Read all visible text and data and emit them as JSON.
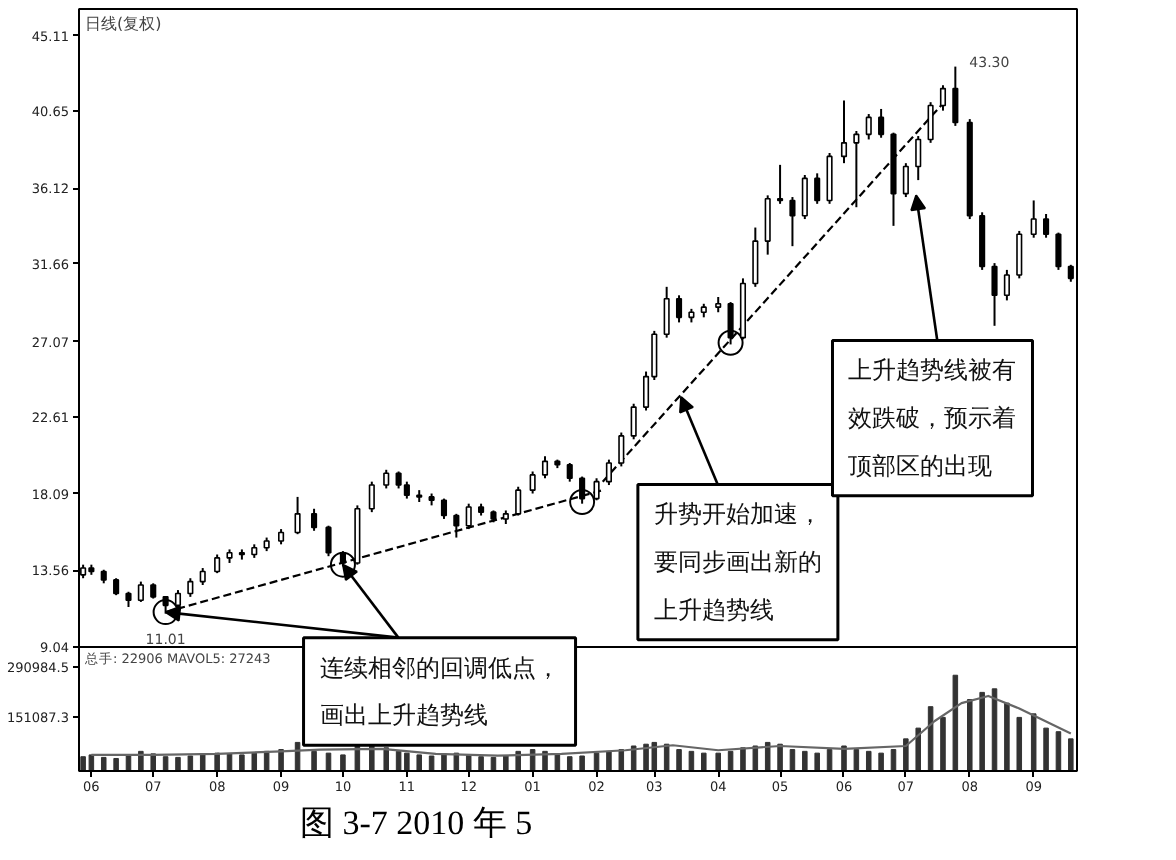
{
  "chart_data": [
    {
      "type": "candlestick",
      "title": "日线(复权)",
      "color": "#000000",
      "xlim": [
        "2010-05-26",
        "2011-09-22"
      ],
      "ylim": [
        9.04,
        46.7
      ],
      "yticks": [
        9.04,
        13.56,
        18.09,
        22.61,
        27.07,
        31.66,
        36.12,
        40.65,
        45.11
      ],
      "tick_labels": "y",
      "x": [
        "2010-05-28",
        "2010-06-01",
        "2010-06-07",
        "2010-06-13",
        "2010-06-19",
        "2010-06-25",
        "2010-07-01",
        "2010-07-07",
        "2010-07-13",
        "2010-07-19",
        "2010-07-25",
        "2010-08-01",
        "2010-08-07",
        "2010-08-13",
        "2010-08-19",
        "2010-08-25",
        "2010-09-01",
        "2010-09-09",
        "2010-09-17",
        "2010-09-24",
        "2010-10-01",
        "2010-10-08",
        "2010-10-15",
        "2010-10-22",
        "2010-10-28",
        "2010-11-01",
        "2010-11-07",
        "2010-11-13",
        "2010-11-19",
        "2010-11-25",
        "2010-12-01",
        "2010-12-07",
        "2010-12-13",
        "2010-12-19",
        "2010-12-25",
        "2011-01-01",
        "2011-01-07",
        "2011-01-13",
        "2011-01-19",
        "2011-01-25",
        "2011-02-01",
        "2011-02-07",
        "2011-02-13",
        "2011-02-19",
        "2011-02-25",
        "2011-03-01",
        "2011-03-07",
        "2011-03-13",
        "2011-03-19",
        "2011-03-25",
        "2011-04-01",
        "2011-04-07",
        "2011-04-13",
        "2011-04-19",
        "2011-04-25",
        "2011-05-01",
        "2011-05-07",
        "2011-05-13",
        "2011-05-19",
        "2011-05-25",
        "2011-06-01",
        "2011-06-07",
        "2011-06-13",
        "2011-06-19",
        "2011-06-25",
        "2011-07-01",
        "2011-07-07",
        "2011-07-13",
        "2011-07-19",
        "2011-07-25",
        "2011-08-01",
        "2011-08-07",
        "2011-08-13",
        "2011-08-19",
        "2011-08-25",
        "2011-09-01",
        "2011-09-07",
        "2011-09-13",
        "2011-09-19"
      ],
      "ohlc": [
        [
          13.3,
          13.9,
          13.1,
          13.7
        ],
        [
          13.7,
          13.9,
          13.3,
          13.5
        ],
        [
          13.5,
          13.6,
          12.8,
          13.0
        ],
        [
          13.0,
          13.1,
          12.1,
          12.2
        ],
        [
          12.2,
          12.3,
          11.4,
          11.8
        ],
        [
          11.8,
          12.9,
          11.7,
          12.7
        ],
        [
          12.7,
          12.8,
          11.9,
          12.0
        ],
        [
          12.0,
          12.0,
          11.01,
          11.5
        ],
        [
          11.5,
          12.4,
          11.4,
          12.2
        ],
        [
          12.2,
          13.1,
          12.0,
          12.9
        ],
        [
          12.9,
          13.7,
          12.7,
          13.5
        ],
        [
          13.5,
          14.5,
          13.4,
          14.3
        ],
        [
          14.3,
          14.8,
          14.0,
          14.6
        ],
        [
          14.6,
          14.8,
          14.2,
          14.5
        ],
        [
          14.5,
          15.1,
          14.3,
          14.9
        ],
        [
          14.9,
          15.5,
          14.7,
          15.3
        ],
        [
          15.3,
          16.0,
          15.1,
          15.8
        ],
        [
          15.8,
          17.9,
          15.7,
          16.9
        ],
        [
          16.9,
          17.2,
          15.9,
          16.1
        ],
        [
          16.1,
          16.2,
          14.4,
          14.6
        ],
        [
          14.6,
          14.7,
          13.8,
          14.0
        ],
        [
          14.0,
          17.4,
          13.9,
          17.2
        ],
        [
          17.2,
          18.8,
          17.0,
          18.6
        ],
        [
          18.6,
          19.5,
          18.4,
          19.3
        ],
        [
          19.3,
          19.4,
          18.4,
          18.6
        ],
        [
          18.6,
          18.8,
          17.8,
          18.0
        ],
        [
          18.0,
          18.3,
          17.6,
          17.9
        ],
        [
          17.9,
          18.1,
          17.4,
          17.7
        ],
        [
          17.7,
          17.8,
          16.6,
          16.8
        ],
        [
          16.8,
          16.9,
          15.5,
          16.2
        ],
        [
          16.2,
          17.5,
          16.0,
          17.3
        ],
        [
          17.3,
          17.5,
          16.8,
          17.0
        ],
        [
          17.0,
          17.1,
          16.4,
          16.6
        ],
        [
          16.6,
          17.1,
          16.3,
          16.9
        ],
        [
          16.9,
          18.5,
          16.8,
          18.3
        ],
        [
          18.3,
          19.4,
          18.1,
          19.2
        ],
        [
          19.2,
          20.3,
          19.0,
          20.0
        ],
        [
          20.0,
          20.1,
          19.6,
          19.8
        ],
        [
          19.8,
          19.9,
          18.8,
          19.0
        ],
        [
          19.0,
          19.1,
          17.5,
          17.8
        ],
        [
          17.8,
          19.0,
          17.7,
          18.8
        ],
        [
          18.8,
          20.1,
          18.6,
          19.9
        ],
        [
          19.9,
          21.7,
          19.7,
          21.5
        ],
        [
          21.5,
          23.4,
          21.3,
          23.2
        ],
        [
          23.2,
          25.3,
          23.0,
          25.0
        ],
        [
          25.0,
          27.7,
          24.8,
          27.5
        ],
        [
          27.5,
          30.3,
          27.3,
          29.6
        ],
        [
          29.6,
          29.8,
          28.2,
          28.5
        ],
        [
          28.5,
          29.0,
          28.2,
          28.8
        ],
        [
          28.8,
          29.3,
          28.5,
          29.1
        ],
        [
          29.1,
          29.7,
          28.8,
          29.3
        ],
        [
          29.3,
          29.4,
          26.9,
          27.3
        ],
        [
          27.3,
          30.8,
          27.2,
          30.5
        ],
        [
          30.5,
          33.8,
          30.3,
          33.0
        ],
        [
          33.0,
          35.7,
          32.2,
          35.5
        ],
        [
          35.5,
          37.5,
          35.2,
          35.4
        ],
        [
          35.4,
          35.6,
          32.7,
          34.5
        ],
        [
          34.5,
          36.9,
          34.3,
          36.7
        ],
        [
          36.7,
          37.0,
          35.2,
          35.4
        ],
        [
          35.4,
          38.2,
          35.2,
          38.0
        ],
        [
          38.0,
          41.3,
          37.6,
          38.8
        ],
        [
          38.8,
          39.5,
          35.0,
          39.3
        ],
        [
          39.3,
          40.5,
          39.0,
          40.3
        ],
        [
          40.3,
          40.8,
          39.1,
          39.3
        ],
        [
          39.3,
          39.4,
          33.9,
          35.8
        ],
        [
          35.8,
          37.6,
          35.6,
          37.4
        ],
        [
          37.4,
          39.2,
          36.6,
          39.0
        ],
        [
          39.0,
          41.2,
          38.8,
          41.0
        ],
        [
          41.0,
          42.2,
          40.7,
          42.0
        ],
        [
          42.0,
          43.3,
          39.8,
          40.0
        ],
        [
          40.0,
          40.2,
          34.3,
          34.5
        ],
        [
          34.5,
          34.7,
          31.3,
          31.5
        ],
        [
          31.5,
          31.7,
          28.0,
          29.8
        ],
        [
          29.8,
          31.3,
          29.5,
          31.0
        ],
        [
          31.0,
          33.6,
          30.8,
          33.4
        ],
        [
          33.4,
          35.4,
          33.2,
          34.3
        ],
        [
          34.3,
          34.6,
          33.2,
          33.4
        ],
        [
          33.4,
          33.5,
          31.3,
          31.5
        ],
        [
          31.5,
          31.6,
          30.6,
          30.8
        ]
      ],
      "series": [
        {
          "type": "line",
          "x": [
            "2010-07-07",
            "2011-02-04"
          ],
          "values": [
            11.1,
            18.3
          ],
          "color": "#000000",
          "line_style": "dashed"
        },
        {
          "type": "line",
          "x": [
            "2011-02-04",
            "2011-07-21"
          ],
          "values": [
            18.8,
            41.4
          ],
          "color": "#000000",
          "line_style": "dashed"
        },
        {
          "type": "scatter",
          "x": [
            "2010-07-07",
            "2010-10-01",
            "2011-01-25",
            "2011-04-07"
          ],
          "values": [
            11.1,
            13.9,
            17.6,
            27.0
          ],
          "color": "#000000",
          "marker": "circle"
        }
      ],
      "annotations": [
        {
          "text": "11.01",
          "x": "2010-07-07",
          "y": 11.01
        },
        {
          "text": "43.30",
          "x": "2011-07-25",
          "y": 43.3
        },
        {
          "text": "连续相邻的回调低点，画出上升趋势线",
          "x": "2010-07-07",
          "y": 11.1
        },
        {
          "text": "升势开始加速，要同步画出新的上升趋势线",
          "x": "2011-03-14",
          "y": 23.8
        },
        {
          "text": "上升趋势线被有效跌破，预示着顶部区的出现",
          "x": "2011-07-06",
          "y": 35.7
        }
      ]
    },
    {
      "type": "bar",
      "title": "总手: 22906 MAVOL5: 27243",
      "xlim": [
        "2010-05-26",
        "2011-09-22"
      ],
      "ylim": [
        0,
        347000
      ],
      "yticks": [
        151087.3,
        290984.5
      ],
      "xticks": [
        {
          "value": "2010-06-01",
          "label": "06"
        },
        {
          "value": "2010-07-01",
          "label": "07"
        },
        {
          "value": "2010-08-01",
          "label": "08"
        },
        {
          "value": "2010-09-01",
          "label": "09"
        },
        {
          "value": "2010-10-01",
          "label": "10"
        },
        {
          "value": "2010-11-01",
          "label": "11"
        },
        {
          "value": "2010-12-01",
          "label": "12"
        },
        {
          "value": "2011-01-01",
          "label": "01"
        },
        {
          "value": "2011-02-01",
          "label": "02"
        },
        {
          "value": "2011-03-01",
          "label": "03"
        },
        {
          "value": "2011-04-01",
          "label": "04"
        },
        {
          "value": "2011-05-01",
          "label": "05"
        },
        {
          "value": "2011-06-01",
          "label": "06"
        },
        {
          "value": "2011-07-01",
          "label": "07"
        },
        {
          "value": "2011-08-01",
          "label": "08"
        },
        {
          "value": "2011-09-01",
          "label": "09"
        }
      ],
      "x": [
        "2010-05-28",
        "2010-06-01",
        "2010-06-07",
        "2010-06-13",
        "2010-06-19",
        "2010-06-25",
        "2010-07-01",
        "2010-07-07",
        "2010-07-13",
        "2010-07-19",
        "2010-07-25",
        "2010-08-01",
        "2010-08-07",
        "2010-08-13",
        "2010-08-19",
        "2010-08-25",
        "2010-09-01",
        "2010-09-09",
        "2010-09-17",
        "2010-09-24",
        "2010-10-01",
        "2010-10-08",
        "2010-10-15",
        "2010-10-22",
        "2010-10-28",
        "2010-11-01",
        "2010-11-07",
        "2010-11-13",
        "2010-11-19",
        "2010-11-25",
        "2010-12-01",
        "2010-12-07",
        "2010-12-13",
        "2010-12-19",
        "2010-12-25",
        "2011-01-01",
        "2011-01-07",
        "2011-01-13",
        "2011-01-19",
        "2011-01-25",
        "2011-02-01",
        "2011-02-07",
        "2011-02-13",
        "2011-02-19",
        "2011-02-25",
        "2011-03-01",
        "2011-03-07",
        "2011-03-13",
        "2011-03-19",
        "2011-03-25",
        "2011-04-01",
        "2011-04-07",
        "2011-04-13",
        "2011-04-19",
        "2011-04-25",
        "2011-05-01",
        "2011-05-07",
        "2011-05-13",
        "2011-05-19",
        "2011-05-25",
        "2011-06-01",
        "2011-06-07",
        "2011-06-13",
        "2011-06-19",
        "2011-06-25",
        "2011-07-01",
        "2011-07-07",
        "2011-07-13",
        "2011-07-19",
        "2011-07-25",
        "2011-08-01",
        "2011-08-07",
        "2011-08-13",
        "2011-08-19",
        "2011-08-25",
        "2011-09-01",
        "2011-09-07",
        "2011-09-13",
        "2011-09-19"
      ],
      "series": [
        {
          "type": "bar",
          "color": "#333333",
          "values": [
            40000,
            45000,
            38000,
            35000,
            42000,
            55000,
            48000,
            40000,
            38000,
            42000,
            45000,
            50000,
            48000,
            45000,
            50000,
            55000,
            60000,
            80000,
            55000,
            50000,
            45000,
            75000,
            70000,
            65000,
            55000,
            50000,
            45000,
            42000,
            48000,
            50000,
            45000,
            40000,
            38000,
            42000,
            55000,
            60000,
            55000,
            45000,
            40000,
            42000,
            50000,
            55000,
            60000,
            70000,
            75000,
            80000,
            75000,
            60000,
            55000,
            50000,
            50000,
            55000,
            65000,
            70000,
            80000,
            75000,
            60000,
            55000,
            50000,
            60000,
            70000,
            60000,
            55000,
            50000,
            60000,
            90000,
            120000,
            180000,
            150000,
            268000,
            200000,
            220000,
            230000,
            190000,
            150000,
            160000,
            120000,
            110000,
            90000
          ]
        },
        {
          "type": "line",
          "color": "#666666",
          "x": [
            "2010-06-01",
            "2010-07-01",
            "2010-08-01",
            "2010-09-01",
            "2010-09-20",
            "2010-10-20",
            "2010-11-15",
            "2010-12-15",
            "2011-01-15",
            "2011-02-15",
            "2011-03-10",
            "2011-04-01",
            "2011-05-01",
            "2011-06-01",
            "2011-07-01",
            "2011-07-15",
            "2011-07-28",
            "2011-08-10",
            "2011-08-25",
            "2011-09-10",
            "2011-09-19"
          ],
          "values": [
            45000,
            45000,
            48000,
            55000,
            60000,
            62000,
            48000,
            43000,
            48000,
            58000,
            72000,
            58000,
            70000,
            62000,
            70000,
            140000,
            190000,
            210000,
            175000,
            130000,
            105000
          ]
        }
      ],
      "annotations": [
        "图 3-7  2010 年 5"
      ]
    }
  ]
}
